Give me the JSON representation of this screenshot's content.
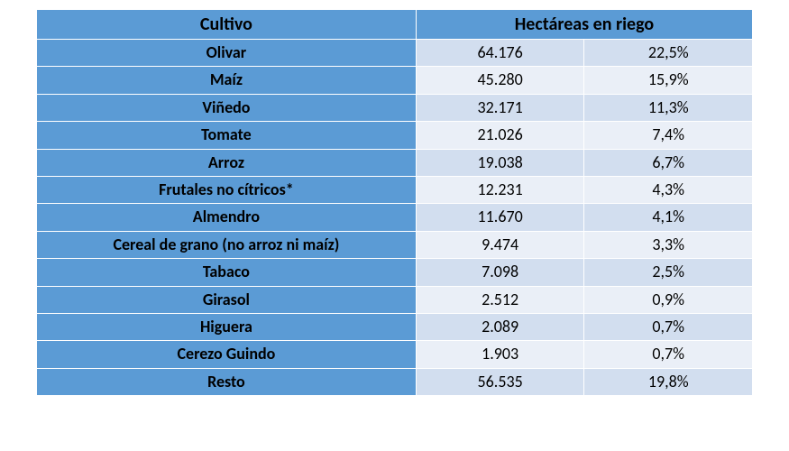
{
  "table": {
    "type": "table",
    "columns": [
      {
        "key": "crop",
        "label": "Cultivo",
        "align": "center",
        "width_pct": 53
      },
      {
        "key": "hectares",
        "label": "Hectáreas en riego",
        "align": "center",
        "width_pct": 47,
        "colspan": 2
      }
    ],
    "colors": {
      "header_bg": "#5b9bd5",
      "crop_col_bg": "#5b9bd5",
      "row_odd_bg": "#d2deef",
      "row_even_bg": "#eaeff7",
      "border": "#ffffff",
      "text": "#000000"
    },
    "fonts": {
      "header_size_pt": 15,
      "body_size_pt": 14,
      "header_weight": 700,
      "crop_weight": 700,
      "num_weight": 400,
      "family": "Calibri"
    },
    "rows": [
      {
        "crop": "Olivar",
        "hectares": "64.176",
        "pct": "22,5%"
      },
      {
        "crop": "Maíz",
        "hectares": "45.280",
        "pct": "15,9%"
      },
      {
        "crop": "Viñedo",
        "hectares": "32.171",
        "pct": "11,3%"
      },
      {
        "crop": "Tomate",
        "hectares": "21.026",
        "pct": "7,4%"
      },
      {
        "crop": "Arroz",
        "hectares": "19.038",
        "pct": "6,7%"
      },
      {
        "crop": "Frutales no cítricos*",
        "hectares": "12.231",
        "pct": "4,3%"
      },
      {
        "crop": "Almendro",
        "hectares": "11.670",
        "pct": "4,1%"
      },
      {
        "crop": "Cereal de grano (no arroz ni maíz)",
        "hectares": "9.474",
        "pct": "3,3%"
      },
      {
        "crop": "Tabaco",
        "hectares": "7.098",
        "pct": "2,5%"
      },
      {
        "crop": "Girasol",
        "hectares": "2.512",
        "pct": "0,9%"
      },
      {
        "crop": "Higuera",
        "hectares": "2.089",
        "pct": "0,7%"
      },
      {
        "crop": "Cerezo Guindo",
        "hectares": "1.903",
        "pct": "0,7%"
      },
      {
        "crop": "Resto",
        "hectares": "56.535",
        "pct": "19,8%"
      }
    ]
  }
}
